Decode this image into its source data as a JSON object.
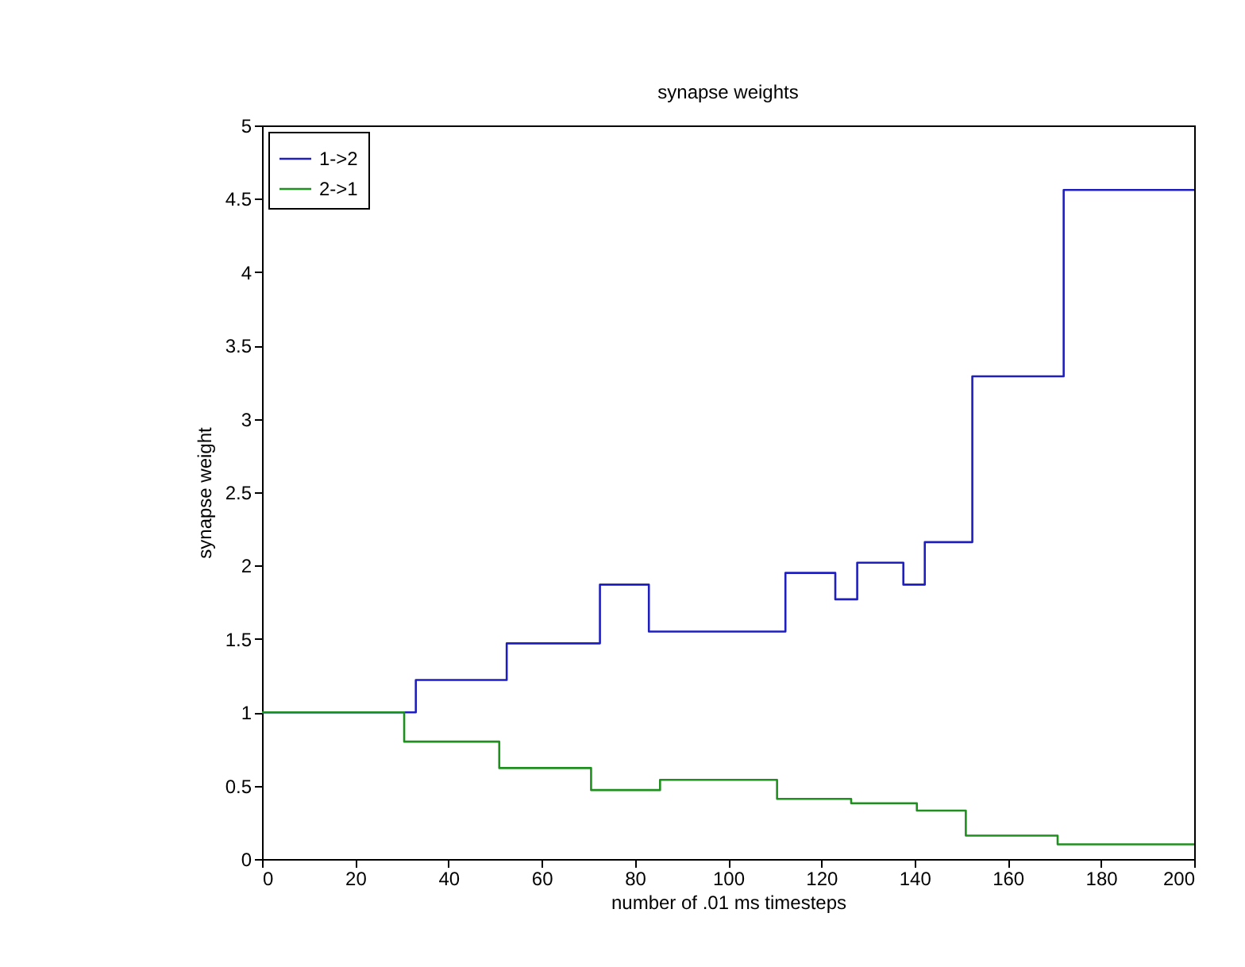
{
  "chart_data": {
    "type": "step",
    "title": "synapse weights",
    "xlabel": "number of .01 ms timesteps",
    "ylabel": "synapse weight",
    "xlim": [
      0,
      200
    ],
    "xticks": [
      0,
      20,
      40,
      60,
      80,
      100,
      120,
      140,
      160,
      180,
      200
    ],
    "ylim": [
      0,
      5
    ],
    "yticks": [
      0,
      0.5,
      1,
      1.5,
      2,
      2.5,
      3,
      3.5,
      4,
      4.5,
      5
    ],
    "grid": false,
    "legend": "top left",
    "line_style": "solid",
    "marker": "none",
    "series": [
      {
        "name": "1->2",
        "color": "#1f1fbf",
        "x": [
          0,
          33,
          52.5,
          72.5,
          83,
          112.3,
          123,
          127.7,
          137.6,
          142.2,
          152.4,
          172,
          200
        ],
        "values": [
          1,
          1.22,
          1.47,
          1.87,
          1.55,
          1.95,
          1.77,
          2.02,
          1.87,
          2.16,
          3.29,
          4.56,
          4.56
        ]
      },
      {
        "name": "2->1",
        "color": "#1f8f1f",
        "x": [
          0,
          30.5,
          50.9,
          70.6,
          85.4,
          110.5,
          126.4,
          140.5,
          151,
          170.7,
          200
        ],
        "values": [
          1,
          0.8,
          0.62,
          0.47,
          0.54,
          0.41,
          0.38,
          0.33,
          0.16,
          0.1,
          0.1
        ]
      }
    ]
  }
}
